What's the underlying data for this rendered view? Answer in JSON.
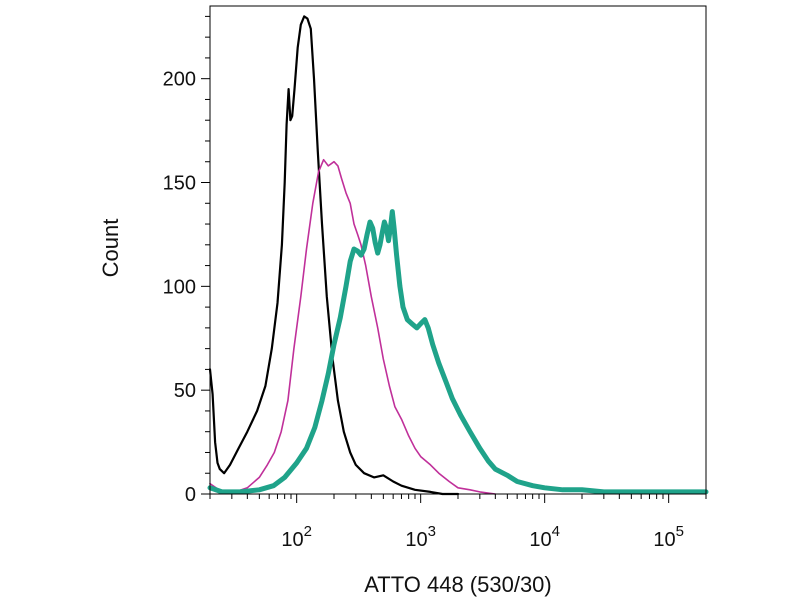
{
  "chart_data": {
    "type": "line",
    "title": "",
    "xlabel": "ATTO 448 (530/30)",
    "ylabel": "Count",
    "x_scale": "log",
    "xlim": [
      20,
      200000
    ],
    "ylim": [
      0,
      235
    ],
    "grid": false,
    "legend": "none",
    "x_ticks": [
      {
        "value": 100,
        "base": "10",
        "exp": "2"
      },
      {
        "value": 1000,
        "base": "10",
        "exp": "3"
      },
      {
        "value": 10000,
        "base": "10",
        "exp": "4"
      },
      {
        "value": 100000,
        "base": "10",
        "exp": "5"
      }
    ],
    "y_ticks": [
      {
        "value": 0,
        "label": "0"
      },
      {
        "value": 50,
        "label": "50"
      },
      {
        "value": 100,
        "label": "100"
      },
      {
        "value": 150,
        "label": "150"
      },
      {
        "value": 200,
        "label": "200"
      }
    ],
    "series": [
      {
        "color": "#000000",
        "points": [
          [
            20,
            60
          ],
          [
            21,
            48
          ],
          [
            22,
            25
          ],
          [
            23,
            15
          ],
          [
            24,
            12
          ],
          [
            26,
            10
          ],
          [
            29,
            14
          ],
          [
            34,
            22
          ],
          [
            40,
            30
          ],
          [
            48,
            40
          ],
          [
            56,
            52
          ],
          [
            63,
            70
          ],
          [
            70,
            92
          ],
          [
            76,
            120
          ],
          [
            80,
            150
          ],
          [
            83,
            178
          ],
          [
            86,
            195
          ],
          [
            89,
            180
          ],
          [
            92,
            182
          ],
          [
            96,
            195
          ],
          [
            102,
            215
          ],
          [
            108,
            226
          ],
          [
            115,
            230
          ],
          [
            122,
            229
          ],
          [
            130,
            224
          ],
          [
            138,
            200
          ],
          [
            148,
            165
          ],
          [
            160,
            130
          ],
          [
            175,
            95
          ],
          [
            195,
            65
          ],
          [
            215,
            45
          ],
          [
            240,
            30
          ],
          [
            270,
            20
          ],
          [
            300,
            14
          ],
          [
            350,
            10
          ],
          [
            420,
            8
          ],
          [
            500,
            9
          ],
          [
            600,
            6
          ],
          [
            700,
            4
          ],
          [
            900,
            2
          ],
          [
            1200,
            1
          ],
          [
            1500,
            0
          ],
          [
            2000,
            0
          ]
        ]
      },
      {
        "color": "#c0309a",
        "points": [
          [
            20,
            5
          ],
          [
            25,
            1
          ],
          [
            32,
            1
          ],
          [
            40,
            3
          ],
          [
            50,
            8
          ],
          [
            58,
            14
          ],
          [
            66,
            20
          ],
          [
            75,
            30
          ],
          [
            85,
            45
          ],
          [
            95,
            70
          ],
          [
            108,
            95
          ],
          [
            120,
            118
          ],
          [
            135,
            140
          ],
          [
            150,
            155
          ],
          [
            165,
            161
          ],
          [
            180,
            158
          ],
          [
            200,
            160
          ],
          [
            215,
            158
          ],
          [
            230,
            152
          ],
          [
            250,
            145
          ],
          [
            270,
            140
          ],
          [
            290,
            130
          ],
          [
            310,
            125
          ],
          [
            330,
            120
          ],
          [
            360,
            110
          ],
          [
            400,
            95
          ],
          [
            450,
            80
          ],
          [
            500,
            65
          ],
          [
            560,
            52
          ],
          [
            620,
            42
          ],
          [
            700,
            36
          ],
          [
            800,
            28
          ],
          [
            900,
            22
          ],
          [
            1000,
            18
          ],
          [
            1200,
            14
          ],
          [
            1400,
            10
          ],
          [
            1700,
            6
          ],
          [
            2000,
            3
          ],
          [
            2500,
            2
          ],
          [
            3000,
            1
          ],
          [
            4000,
            0
          ]
        ]
      },
      {
        "color": "#1fa38a",
        "points": [
          [
            20,
            3
          ],
          [
            25,
            1
          ],
          [
            35,
            1
          ],
          [
            50,
            2
          ],
          [
            65,
            4
          ],
          [
            80,
            8
          ],
          [
            100,
            15
          ],
          [
            120,
            22
          ],
          [
            140,
            32
          ],
          [
            160,
            45
          ],
          [
            180,
            58
          ],
          [
            200,
            72
          ],
          [
            225,
            85
          ],
          [
            250,
            100
          ],
          [
            270,
            112
          ],
          [
            290,
            118
          ],
          [
            310,
            117
          ],
          [
            330,
            115
          ],
          [
            350,
            118
          ],
          [
            370,
            125
          ],
          [
            390,
            131
          ],
          [
            410,
            128
          ],
          [
            430,
            121
          ],
          [
            450,
            116
          ],
          [
            470,
            120
          ],
          [
            490,
            126
          ],
          [
            510,
            131
          ],
          [
            530,
            128
          ],
          [
            550,
            122
          ],
          [
            570,
            128
          ],
          [
            590,
            136
          ],
          [
            610,
            128
          ],
          [
            640,
            115
          ],
          [
            680,
            100
          ],
          [
            720,
            90
          ],
          [
            780,
            84
          ],
          [
            850,
            82
          ],
          [
            930,
            80
          ],
          [
            1000,
            82
          ],
          [
            1080,
            84
          ],
          [
            1150,
            80
          ],
          [
            1250,
            72
          ],
          [
            1400,
            63
          ],
          [
            1600,
            54
          ],
          [
            1800,
            46
          ],
          [
            2100,
            38
          ],
          [
            2500,
            30
          ],
          [
            3000,
            22
          ],
          [
            3500,
            16
          ],
          [
            4000,
            12
          ],
          [
            5000,
            9
          ],
          [
            6000,
            6
          ],
          [
            8000,
            4
          ],
          [
            10000,
            3
          ],
          [
            14000,
            2
          ],
          [
            20000,
            2
          ],
          [
            30000,
            1
          ],
          [
            60000,
            1
          ],
          [
            100000,
            1
          ],
          [
            200000,
            1
          ]
        ]
      }
    ]
  }
}
